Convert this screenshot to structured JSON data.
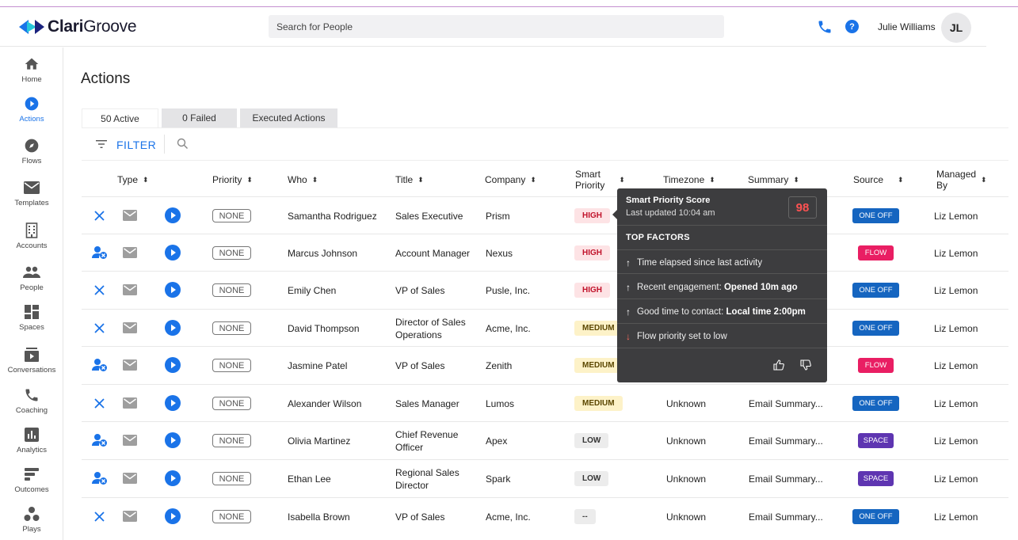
{
  "app": {
    "brand": "Clari Groove",
    "search_placeholder": "Search for People",
    "user_name": "Julie Williams",
    "user_initials": "JL"
  },
  "sidebar": {
    "items": [
      {
        "label": "Home",
        "icon": "home-icon"
      },
      {
        "label": "Actions",
        "icon": "play-circle-icon",
        "active": true
      },
      {
        "label": "Flows",
        "icon": "compass-icon"
      },
      {
        "label": "Templates",
        "icon": "mail-icon"
      },
      {
        "label": "Accounts",
        "icon": "building-icon"
      },
      {
        "label": "People",
        "icon": "people-icon"
      },
      {
        "label": "Spaces",
        "icon": "grid-icon"
      },
      {
        "label": "Conversations",
        "icon": "conversations-icon"
      },
      {
        "label": "Coaching",
        "icon": "phone-icon"
      },
      {
        "label": "Analytics",
        "icon": "bar-chart-icon"
      },
      {
        "label": "Outcomes",
        "icon": "outcomes-icon"
      },
      {
        "label": "Plays",
        "icon": "plays-icon"
      }
    ]
  },
  "main": {
    "title": "Actions",
    "tabs": [
      "50 Active",
      "0 Failed",
      "Executed Actions"
    ],
    "filter_label": "FILTER",
    "columns": {
      "type": "Type",
      "priority": "Priority",
      "who": "Who",
      "title": "Title",
      "company": "Company",
      "smart_priority": "Smart\nPriority",
      "timezone": "Timezone",
      "summary": "Summary",
      "source": "Source",
      "managed_by": "Managed\nBy"
    },
    "rows": [
      {
        "status": "x",
        "priority": "NONE",
        "who": "Samantha Rodriguez",
        "title": "Sales Executive",
        "company": "Prism",
        "smart": "HIGH",
        "smart_level": "high",
        "timezone": "",
        "summary": "",
        "source": "ONE OFF",
        "managed": "Liz Lemon"
      },
      {
        "status": "user",
        "priority": "NONE",
        "who": "Marcus Johnson",
        "title": "Account Manager",
        "company": "Nexus",
        "smart": "HIGH",
        "smart_level": "high",
        "timezone": "",
        "summary": "",
        "source": "FLOW",
        "managed": "Liz Lemon"
      },
      {
        "status": "x",
        "priority": "NONE",
        "who": "Emily Chen",
        "title": "VP of Sales",
        "company": "Pusle, Inc.",
        "smart": "HIGH",
        "smart_level": "high",
        "timezone": "",
        "summary": "",
        "source": "ONE OFF",
        "managed": "Liz Lemon"
      },
      {
        "status": "x",
        "priority": "NONE",
        "who": "David Thompson",
        "title": "Director of Sales Operations",
        "company": "Acme, Inc.",
        "smart": "MEDIUM",
        "smart_level": "medium",
        "timezone": "",
        "summary": "",
        "source": "ONE OFF",
        "managed": "Liz Lemon"
      },
      {
        "status": "user",
        "priority": "NONE",
        "who": "Jasmine Patel",
        "title": "VP of Sales",
        "company": "Zenith",
        "smart": "MEDIUM",
        "smart_level": "medium",
        "timezone": "",
        "summary": "",
        "source": "FLOW",
        "managed": "Liz Lemon"
      },
      {
        "status": "x",
        "priority": "NONE",
        "who": "Alexander Wilson",
        "title": "Sales Manager",
        "company": "Lumos",
        "smart": "MEDIUM",
        "smart_level": "medium",
        "timezone": "Unknown",
        "summary": "Email Summary...",
        "source": "ONE OFF",
        "managed": "Liz Lemon"
      },
      {
        "status": "user",
        "priority": "NONE",
        "who": "Olivia Martinez",
        "title": "Chief Revenue Officer",
        "company": "Apex",
        "smart": "LOW",
        "smart_level": "low",
        "timezone": "Unknown",
        "summary": "Email Summary...",
        "source": "SPACE",
        "managed": "Liz Lemon"
      },
      {
        "status": "user",
        "priority": "NONE",
        "who": "Ethan Lee",
        "title": "Regional Sales Director",
        "company": "Spark",
        "smart": "LOW",
        "smart_level": "low",
        "timezone": "Unknown",
        "summary": "Email Summary...",
        "source": "SPACE",
        "managed": "Liz Lemon"
      },
      {
        "status": "x",
        "priority": "NONE",
        "who": "Isabella Brown",
        "title": "VP of Sales",
        "company": "Acme, Inc.",
        "smart": "--",
        "smart_level": "none",
        "timezone": "Unknown",
        "summary": "Email Summary...",
        "source": "ONE OFF",
        "managed": "Liz Lemon"
      }
    ]
  },
  "tooltip": {
    "title": "Smart Priority Score",
    "subtitle": "Last updated 10:04 am",
    "score": "98",
    "factors_heading": "TOP FACTORS",
    "factors": [
      {
        "direction": "up",
        "text": "Time elapsed since last activity",
        "bold": ""
      },
      {
        "direction": "up",
        "text": "Recent engagement: ",
        "bold": "Opened 10m ago"
      },
      {
        "direction": "up",
        "text": "Good time to contact: ",
        "bold": "Local time 2:00pm"
      },
      {
        "direction": "down",
        "text": "Flow priority set to low",
        "bold": ""
      }
    ]
  },
  "colors": {
    "accent": "#1a73e8",
    "high": "#c1132b",
    "one_off": "#1565c0",
    "flow": "#e91e63",
    "space": "#5e35b1"
  }
}
